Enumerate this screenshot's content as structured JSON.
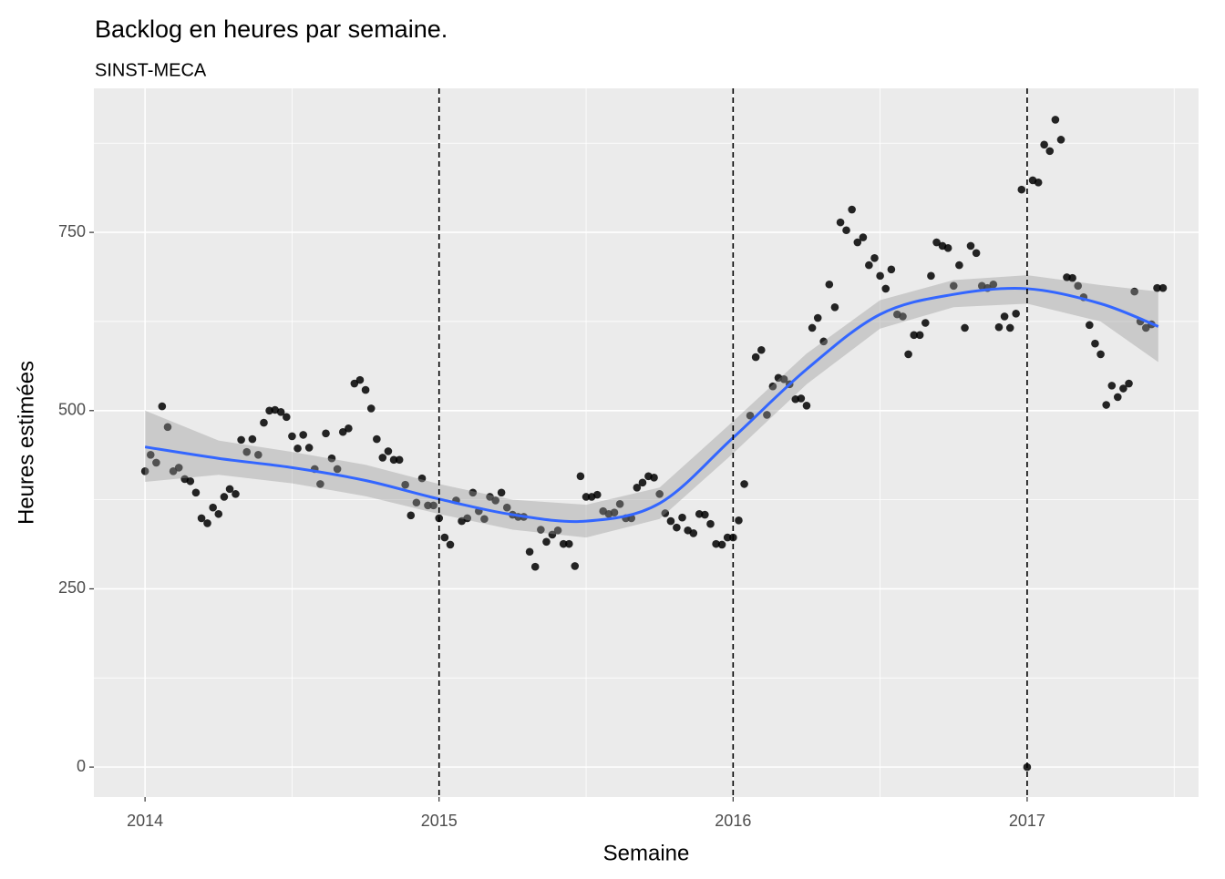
{
  "chart_data": {
    "type": "scatter",
    "title": "Backlog en heures par semaine.",
    "subtitle": "SINST-MECA",
    "x_label": "Semaine",
    "y_label": "Heures estimées",
    "xlim": [
      2013.826,
      2017.583
    ],
    "ylim": [
      -42,
      952
    ],
    "xticks": [
      2014,
      2015,
      2016,
      2017
    ],
    "yticks": [
      0,
      250,
      500,
      750
    ],
    "xminor": [
      2014.5,
      2015.5,
      2016.5,
      2017.5
    ],
    "yminor": [
      125,
      375,
      625,
      875
    ],
    "grid": true,
    "color": "#000000",
    "vlines": [
      2015,
      2016,
      2017
    ],
    "x": [
      2014.0,
      2014.019,
      2014.038,
      2014.058,
      2014.077,
      2014.096,
      2014.115,
      2014.135,
      2014.154,
      2014.173,
      2014.192,
      2014.212,
      2014.231,
      2014.25,
      2014.269,
      2014.288,
      2014.308,
      2014.327,
      2014.346,
      2014.365,
      2014.385,
      2014.404,
      2014.423,
      2014.442,
      2014.462,
      2014.481,
      2014.5,
      2014.519,
      2014.538,
      2014.558,
      2014.577,
      2014.596,
      2014.615,
      2014.635,
      2014.654,
      2014.673,
      2014.692,
      2014.712,
      2014.731,
      2014.75,
      2014.769,
      2014.788,
      2014.808,
      2014.827,
      2014.846,
      2014.865,
      2014.885,
      2014.904,
      2014.923,
      2014.942,
      2014.962,
      2014.981,
      2015.0,
      2015.019,
      2015.038,
      2015.058,
      2015.077,
      2015.096,
      2015.115,
      2015.135,
      2015.154,
      2015.173,
      2015.192,
      2015.212,
      2015.231,
      2015.25,
      2015.269,
      2015.288,
      2015.308,
      2015.327,
      2015.346,
      2015.365,
      2015.385,
      2015.404,
      2015.423,
      2015.442,
      2015.462,
      2015.481,
      2015.5,
      2015.519,
      2015.538,
      2015.558,
      2015.577,
      2015.596,
      2015.615,
      2015.635,
      2015.654,
      2015.673,
      2015.692,
      2015.712,
      2015.731,
      2015.75,
      2015.769,
      2015.788,
      2015.808,
      2015.827,
      2015.846,
      2015.865,
      2015.885,
      2015.904,
      2015.923,
      2015.942,
      2015.962,
      2015.981,
      2016.0,
      2016.019,
      2016.038,
      2016.058,
      2016.077,
      2016.096,
      2016.115,
      2016.135,
      2016.154,
      2016.173,
      2016.192,
      2016.212,
      2016.231,
      2016.25,
      2016.269,
      2016.288,
      2016.308,
      2016.327,
      2016.346,
      2016.365,
      2016.385,
      2016.404,
      2016.423,
      2016.442,
      2016.462,
      2016.481,
      2016.5,
      2016.519,
      2016.538,
      2016.558,
      2016.577,
      2016.596,
      2016.615,
      2016.635,
      2016.654,
      2016.673,
      2016.692,
      2016.712,
      2016.731,
      2016.75,
      2016.769,
      2016.788,
      2016.808,
      2016.827,
      2016.846,
      2016.865,
      2016.885,
      2016.904,
      2016.923,
      2016.942,
      2016.962,
      2016.981,
      2017.0,
      2017.019,
      2017.038,
      2017.058,
      2017.077,
      2017.096,
      2017.115,
      2017.135,
      2017.154,
      2017.173,
      2017.192,
      2017.212,
      2017.231,
      2017.25,
      2017.269,
      2017.288,
      2017.308,
      2017.327,
      2017.346,
      2017.365,
      2017.385,
      2017.404,
      2017.423,
      2017.442,
      2017.462
    ],
    "values": [
      415,
      438,
      427,
      506,
      477,
      415,
      420,
      404,
      401,
      385,
      349,
      342,
      364,
      355,
      379,
      390,
      383,
      459,
      442,
      460,
      438,
      483,
      500,
      501,
      498,
      491,
      464,
      447,
      466,
      448,
      418,
      397,
      468,
      433,
      418,
      470,
      475,
      538,
      543,
      529,
      503,
      460,
      434,
      443,
      431,
      431,
      396,
      353,
      371,
      405,
      367,
      367,
      349,
      322,
      312,
      374,
      345,
      349,
      385,
      359,
      348,
      379,
      374,
      385,
      364,
      354,
      351,
      351,
      302,
      281,
      333,
      316,
      326,
      332,
      313,
      313,
      282,
      408,
      379,
      379,
      382,
      359,
      355,
      357,
      369,
      349,
      349,
      392,
      399,
      408,
      406,
      383,
      356,
      345,
      336,
      350,
      332,
      328,
      355,
      354,
      341,
      313,
      312,
      322,
      322,
      346,
      397,
      493,
      575,
      585,
      494,
      534,
      546,
      544,
      537,
      516,
      517,
      507,
      616,
      630,
      597,
      677,
      645,
      764,
      753,
      782,
      736,
      743,
      704,
      714,
      689,
      671,
      698,
      635,
      632,
      579,
      606,
      606,
      623,
      689,
      736,
      731,
      728,
      675,
      704,
      616,
      731,
      721,
      675,
      672,
      677,
      617,
      632,
      616,
      636,
      810,
      0,
      823,
      820,
      873,
      864,
      908,
      880,
      687,
      686,
      675,
      659,
      620,
      594,
      579,
      508,
      535,
      519,
      531,
      538,
      667,
      625,
      616,
      621,
      672,
      672
    ],
    "trend": {
      "color": "#3366ff",
      "band_color": "#999999",
      "x": [
        2014.0,
        2014.25,
        2014.5,
        2014.75,
        2015.0,
        2015.25,
        2015.5,
        2015.75,
        2016.0,
        2016.25,
        2016.5,
        2016.75,
        2017.0,
        2017.25,
        2017.446
      ],
      "values": [
        449,
        433,
        420,
        402,
        376,
        354,
        345,
        370,
        462,
        558,
        635,
        663,
        671,
        650,
        618
      ],
      "lower": [
        400,
        410,
        398,
        380,
        355,
        333,
        322,
        348,
        440,
        537,
        615,
        645,
        650,
        625,
        568
      ],
      "upper": [
        500,
        458,
        442,
        424,
        397,
        375,
        368,
        392,
        485,
        580,
        655,
        683,
        690,
        676,
        667
      ]
    }
  }
}
